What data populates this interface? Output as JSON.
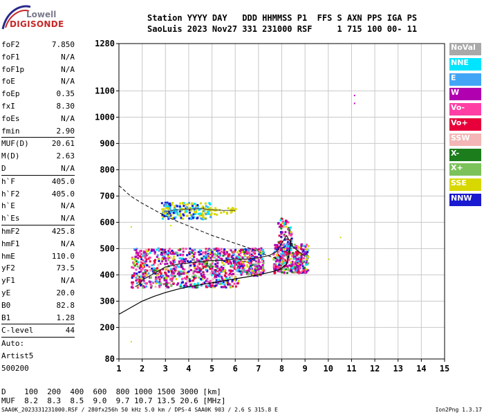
{
  "logo": {
    "top": "Lowell",
    "bottom": "DIGISONDE"
  },
  "header": {
    "line1": "Station YYYY DAY   DDD HHMMSS P1  FFS S AXN PPS IGA PS",
    "line2": "SaoLuis 2023 Nov27 331 231000 RSF     1 715 100 00- 11"
  },
  "params": [
    {
      "k": "foF2",
      "v": "7.850"
    },
    {
      "k": "foF1",
      "v": "N/A"
    },
    {
      "k": "foF1p",
      "v": "N/A"
    },
    {
      "k": "foE",
      "v": "N/A"
    },
    {
      "k": "foEp",
      "v": "0.35"
    },
    {
      "k": "fxI",
      "v": "8.30"
    },
    {
      "k": "foEs",
      "v": "N/A"
    },
    {
      "k": "fmin",
      "v": "2.90"
    },
    {
      "sep": true
    },
    {
      "k": "MUF(D)",
      "v": "20.61"
    },
    {
      "k": "M(D)",
      "v": "2.63"
    },
    {
      "k": "D",
      "v": "N/A"
    },
    {
      "sep": true
    },
    {
      "k": "h`F",
      "v": "405.0"
    },
    {
      "k": "h`F2",
      "v": "405.0"
    },
    {
      "k": "h`E",
      "v": "N/A"
    },
    {
      "k": "h`Es",
      "v": "N/A"
    },
    {
      "sep": true
    },
    {
      "k": "hmF2",
      "v": "425.8"
    },
    {
      "k": "hmF1",
      "v": "N/A"
    },
    {
      "k": "hmE",
      "v": "110.0"
    },
    {
      "k": "yF2",
      "v": "73.5"
    },
    {
      "k": "yF1",
      "v": "N/A"
    },
    {
      "k": "yE",
      "v": "20.0"
    },
    {
      "k": "B0",
      "v": "82.8"
    },
    {
      "k": "B1",
      "v": "1.28"
    },
    {
      "sep": true
    },
    {
      "k": "C-level",
      "v": "44"
    },
    {
      "sep": true
    },
    {
      "k": "Auto:",
      "v": ""
    },
    {
      "k": "Artist5",
      "v": ""
    },
    {
      "k": "500200",
      "v": ""
    }
  ],
  "legend": [
    {
      "label": "NoVal",
      "color": "#a9a9a9"
    },
    {
      "label": "NNE",
      "color": "#00e5ff"
    },
    {
      "label": "E",
      "color": "#42a5f5"
    },
    {
      "label": "W",
      "color": "#b000b0"
    },
    {
      "label": "Vo-",
      "color": "#ff3fa4"
    },
    {
      "label": "Vo+",
      "color": "#e8003a"
    },
    {
      "label": "SSW",
      "color": "#f4b6b6"
    },
    {
      "label": "X-",
      "color": "#1b7d1b"
    },
    {
      "label": "X+",
      "color": "#7cc25a"
    },
    {
      "label": "SSE",
      "color": "#d8d800"
    },
    {
      "label": "NNW",
      "color": "#1a1ad0"
    }
  ],
  "footer": {
    "d_row": "D    100  200  400  600  800 1000 1500 3000 [km]",
    "muf_row": "MUF  8.2  8.3  8.5  9.0  9.7 10.7 13.5 20.6 [MHz]",
    "file_info": "SAA0K_2023331231000.RSF / 280fx256h 50 kHz 5.0 km / DPS-4 SAA0K 903 / 2.6 S 315.8 E",
    "version": "Ion2Png 1.3.17"
  },
  "chart_data": {
    "type": "scatter",
    "xlim": [
      1,
      15
    ],
    "ylim": [
      80,
      1280
    ],
    "xticks": [
      1,
      2,
      3,
      4,
      5,
      6,
      7,
      8,
      9,
      10,
      11,
      12,
      13,
      14,
      15
    ],
    "yticks": [
      80,
      200,
      300,
      400,
      500,
      600,
      700,
      800,
      900,
      1000,
      1100,
      1280
    ],
    "grid": true,
    "o_trace": [
      [
        1.7,
        355
      ],
      [
        1.9,
        365
      ],
      [
        2.0,
        380
      ],
      [
        2.5,
        405
      ],
      [
        3.0,
        430
      ],
      [
        3.5,
        440
      ],
      [
        4.0,
        445
      ],
      [
        4.5,
        450
      ],
      [
        5.0,
        455
      ],
      [
        5.5,
        455
      ],
      [
        6.0,
        460
      ],
      [
        6.5,
        460
      ],
      [
        7.0,
        465
      ],
      [
        7.5,
        475
      ],
      [
        7.8,
        490
      ],
      [
        8.0,
        520
      ],
      [
        8.2,
        550
      ],
      [
        8.5,
        505
      ],
      [
        9.0,
        470
      ]
    ],
    "x_trace": [
      [
        3.0,
        640
      ],
      [
        3.5,
        648
      ],
      [
        4.0,
        650
      ],
      [
        4.5,
        652
      ],
      [
        5.0,
        648
      ],
      [
        5.5,
        645
      ],
      [
        6.0,
        645
      ]
    ],
    "profile_dashed": [
      [
        1.0,
        740
      ],
      [
        1.5,
        700
      ],
      [
        2.0,
        672
      ],
      [
        2.5,
        648
      ],
      [
        3.0,
        624
      ],
      [
        3.5,
        604
      ],
      [
        4.0,
        586
      ],
      [
        4.5,
        568
      ],
      [
        5.0,
        550
      ],
      [
        5.5,
        535
      ],
      [
        6.0,
        520
      ],
      [
        6.5,
        505
      ],
      [
        7.0,
        488
      ],
      [
        7.5,
        470
      ],
      [
        7.85,
        460
      ]
    ],
    "profile_solid": [
      [
        1.0,
        250
      ],
      [
        1.5,
        275
      ],
      [
        2.0,
        300
      ],
      [
        2.5,
        318
      ],
      [
        3.0,
        333
      ],
      [
        3.5,
        345
      ],
      [
        4.0,
        355
      ],
      [
        4.5,
        362
      ],
      [
        5.0,
        370
      ],
      [
        5.5,
        378
      ],
      [
        6.0,
        385
      ],
      [
        6.5,
        392
      ],
      [
        7.0,
        400
      ],
      [
        7.5,
        410
      ],
      [
        7.9,
        420
      ],
      [
        8.2,
        440
      ],
      [
        8.3,
        470
      ],
      [
        8.4,
        540
      ]
    ],
    "outliers": [
      [
        11.1,
        1085
      ],
      [
        11.1,
        1055
      ],
      [
        1.5,
        148
      ],
      [
        1.5,
        585
      ],
      [
        10.5,
        545
      ],
      [
        3.2,
        590
      ],
      [
        10.0,
        462
      ]
    ]
  }
}
